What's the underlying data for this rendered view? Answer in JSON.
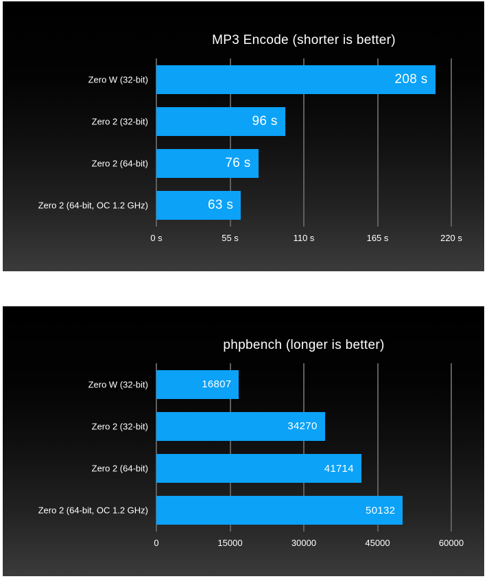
{
  "page": {
    "background_color": "#ffffff",
    "panel_gradient_top": "#000000",
    "panel_gradient_bottom": "#3b3b3b",
    "text_color": "#ffffff"
  },
  "chart_data": [
    {
      "type": "bar",
      "orientation": "horizontal",
      "title": "MP3 Encode (shorter is better)",
      "categories": [
        "Zero W (32-bit)",
        "Zero 2 (32-bit)",
        "Zero 2 (64-bit)",
        "Zero 2 (64-bit, OC 1.2 GHz)"
      ],
      "values": [
        208,
        96,
        76,
        63
      ],
      "value_labels": [
        "208 s",
        "96 s",
        "76 s",
        "63 s"
      ],
      "xlim": [
        0,
        220
      ],
      "tick_values": [
        0,
        55,
        110,
        165,
        220
      ],
      "tick_labels": [
        "0 s",
        "55 s",
        "110 s",
        "165 s",
        "220 s"
      ],
      "grid": true,
      "legend": false,
      "bar_color": "#0ba2f8",
      "gridline_color": "#5f5f5f",
      "text_color": "#ffffff"
    },
    {
      "type": "bar",
      "orientation": "horizontal",
      "title": "phpbench (longer is better)",
      "categories": [
        "Zero W (32-bit)",
        "Zero 2 (32-bit)",
        "Zero 2 (64-bit)",
        "Zero 2 (64-bit, OC 1.2 GHz)"
      ],
      "values": [
        16807,
        34270,
        41714,
        50132
      ],
      "value_labels": [
        "16807",
        "34270",
        "41714",
        "50132"
      ],
      "xlim": [
        0,
        60000
      ],
      "tick_values": [
        0,
        15000,
        30000,
        45000,
        60000
      ],
      "tick_labels": [
        "0",
        "15000",
        "30000",
        "45000",
        "60000"
      ],
      "grid": true,
      "legend": false,
      "bar_color": "#0ba2f8",
      "gridline_color": "#5f5f5f",
      "text_color": "#ffffff"
    }
  ]
}
